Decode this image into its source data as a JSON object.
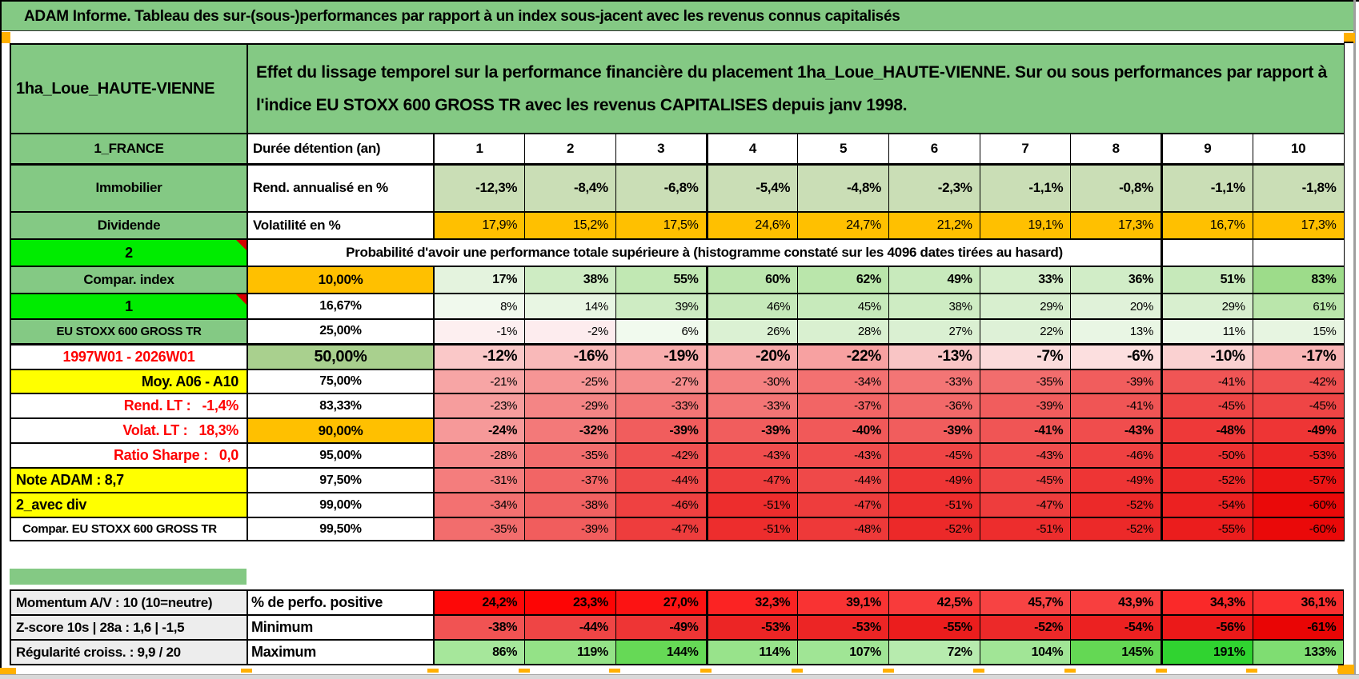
{
  "title_bar": {
    "text": "ADAM Informe. Tableau des sur-(sous-)performances par rapport à un index sous-jacent avec les revenus connus capitalisés"
  },
  "header": {
    "portfolio": "1ha_Loue_HAUTE-VIENNE",
    "description": "Effet du lissage temporel sur la performance financière du placement 1ha_Loue_HAUTE-VIENNE. Sur ou sous performances par rapport à l'indice EU STOXX 600 GROSS TR avec les revenus CAPITALISES depuis janv 1998."
  },
  "columns": [
    "1",
    "2",
    "3",
    "4",
    "5",
    "6",
    "7",
    "8",
    "9",
    "10"
  ],
  "prob_banner": "Probabilité d'avoir une performance totale supérieure à (histogramme constaté sur les 4096 dates tirées au hasard)",
  "colors": {
    "section_green": "#84c984",
    "bright_green": "#00ec00",
    "orange": "#ffc000",
    "yellow": "#ffff00",
    "red_text": "#fe0000",
    "mid_green_50": "#a9d08e",
    "rend_row_green": "#cadeb6",
    "label_gray": "#ededed",
    "marker_orange": "#ffb000"
  },
  "main_rows": [
    {
      "kind": "cols",
      "label": "1_FRANCE",
      "label_style": "green",
      "header": "Durée détention (an)",
      "header_style": "left-bold",
      "thick_bottom": true
    },
    {
      "kind": "data",
      "label": "Immobilier",
      "label_style": "green",
      "header": "Rend. annualisé en %",
      "header_style": "left-bold",
      "value_style": "bold-17",
      "cell_bg": "#cadeb6",
      "values": [
        "-12,3%",
        "-8,4%",
        "-6,8%",
        "-5,4%",
        "-4,8%",
        "-2,3%",
        "-1,1%",
        "-0,8%",
        "-1,1%",
        "-1,8%"
      ]
    },
    {
      "kind": "data",
      "label": "Dividende",
      "label_style": "green",
      "header": "Volatilité en %",
      "header_style": "left-bold",
      "value_style": "norm-16",
      "cell_bg": "#ffc000",
      "values": [
        "17,9%",
        "15,2%",
        "17,5%",
        "24,6%",
        "24,7%",
        "21,2%",
        "19,1%",
        "17,3%",
        "16,7%",
        "17,3%"
      ]
    },
    {
      "kind": "banner",
      "label": "2",
      "label_style": "bright",
      "marker": true
    },
    {
      "kind": "data",
      "label": "Compar. index",
      "label_style": "green",
      "header": "10,00%",
      "header_style": "orange",
      "value_style": "bold-16",
      "values": [
        "17%",
        "38%",
        "55%",
        "60%",
        "62%",
        "49%",
        "33%",
        "36%",
        "51%",
        "83%"
      ],
      "cell_bgs": [
        "#e4f3de",
        "#ceecc3",
        "#c1e8b3",
        "#bce6ae",
        "#bae6ab",
        "#c8eabc",
        "#d4eeca",
        "#d1edc7",
        "#c6e9ba",
        "#9ddc8a"
      ]
    },
    {
      "kind": "data",
      "label": "1",
      "label_style": "bright",
      "marker": true,
      "header": "16,67%",
      "header_style": "center",
      "value_style": "norm-15",
      "values": [
        "8%",
        "14%",
        "39%",
        "46%",
        "45%",
        "38%",
        "29%",
        "20%",
        "29%",
        "61%"
      ],
      "cell_bgs": [
        "#f0f9ed",
        "#e8f6e3",
        "#ceecc3",
        "#c6e9ba",
        "#c7eabb",
        "#ceecc3",
        "#d8efcf",
        "#e0f2d9",
        "#d8efcf",
        "#bae6ab"
      ]
    },
    {
      "kind": "data",
      "label": "EU STOXX 600 GROSS TR",
      "label_style": "green-sm",
      "header": "25,00%",
      "header_style": "center",
      "value_style": "norm-15",
      "thick_bottom": true,
      "values": [
        "-1%",
        "-2%",
        "6%",
        "26%",
        "28%",
        "27%",
        "22%",
        "13%",
        "11%",
        "15%"
      ],
      "cell_bgs": [
        "#fdeff0",
        "#fdecee",
        "#f1faee",
        "#dbf1d3",
        "#d9f0d0",
        "#daf0d2",
        "#def1d7",
        "#e9f6e4",
        "#ebf7e7",
        "#e7f5e1"
      ]
    },
    {
      "kind": "data",
      "label": "1997W01 - 2026W01",
      "label_style": "red-center",
      "header": "50,00%",
      "header_style": "green-big",
      "value_style": "bold-19",
      "values": [
        "-12%",
        "-16%",
        "-19%",
        "-20%",
        "-22%",
        "-13%",
        "-7%",
        "-6%",
        "-10%",
        "-17%"
      ],
      "cell_bgs": [
        "#fac8c8",
        "#f9b9b9",
        "#f8adad",
        "#f7a9a9",
        "#f7a1a1",
        "#f9c5c5",
        "#fbdbdb",
        "#fcdfdf",
        "#fad1d1",
        "#f8b5b5"
      ]
    },
    {
      "kind": "data",
      "label": "Moy. A06 - A10",
      "label_style": "yellow-right",
      "header": "75,00%",
      "header_style": "center",
      "value_style": "norm-15",
      "values": [
        "-21%",
        "-25%",
        "-27%",
        "-30%",
        "-34%",
        "-33%",
        "-35%",
        "-39%",
        "-41%",
        "-42%"
      ],
      "cell_bgs": [
        "#f7a5a5",
        "#f69595",
        "#f58d8d",
        "#f48181",
        "#f37171",
        "#f37575",
        "#f26d6d",
        "#f15d5d",
        "#f05555",
        "#f05151"
      ]
    },
    {
      "kind": "data",
      "label": "Rend. LT :   -1,4%",
      "label_style": "red-right",
      "header": "83,33%",
      "header_style": "center",
      "value_style": "norm-15",
      "values": [
        "-23%",
        "-29%",
        "-33%",
        "-33%",
        "-37%",
        "-36%",
        "-39%",
        "-41%",
        "-45%",
        "-45%"
      ],
      "cell_bgs": [
        "#f69d9d",
        "#f48585",
        "#f37575",
        "#f37575",
        "#f26565",
        "#f26969",
        "#f15d5d",
        "#f05555",
        "#ef4545",
        "#ef4545"
      ]
    },
    {
      "kind": "data",
      "label": "Volat. LT :   18,3%",
      "label_style": "red-right",
      "header": "90,00%",
      "header_style": "orange",
      "value_style": "bold-16",
      "values": [
        "-24%",
        "-32%",
        "-39%",
        "-39%",
        "-40%",
        "-39%",
        "-41%",
        "-43%",
        "-48%",
        "-49%"
      ],
      "cell_bgs": [
        "#f69999",
        "#f37979",
        "#f15d5d",
        "#f15d5d",
        "#f15959",
        "#f15d5d",
        "#f05555",
        "#f04d4d",
        "#ee3939",
        "#ee3535"
      ]
    },
    {
      "kind": "data",
      "label": "Ratio Sharpe :   0,0",
      "label_style": "red-right",
      "header": "95,00%",
      "header_style": "center",
      "value_style": "norm-15",
      "values": [
        "-28%",
        "-35%",
        "-42%",
        "-43%",
        "-43%",
        "-45%",
        "-43%",
        "-46%",
        "-50%",
        "-53%"
      ],
      "cell_bgs": [
        "#f58989",
        "#f26d6d",
        "#f05151",
        "#f04d4d",
        "#f04d4d",
        "#ef4545",
        "#f04d4d",
        "#ef4141",
        "#ed3131",
        "#ec2525"
      ]
    },
    {
      "kind": "data",
      "label": "Note ADAM : 8,7",
      "label_style": "yellow-left",
      "header": "97,50%",
      "header_style": "center",
      "value_style": "norm-15",
      "values": [
        "-31%",
        "-37%",
        "-44%",
        "-47%",
        "-44%",
        "-49%",
        "-45%",
        "-49%",
        "-52%",
        "-57%"
      ],
      "cell_bgs": [
        "#f47d7d",
        "#f26565",
        "#ef4949",
        "#ee3d3d",
        "#ef4949",
        "#ee3535",
        "#ef4545",
        "#ee3535",
        "#ec2929",
        "#eb1515"
      ]
    },
    {
      "kind": "data",
      "label": "2_avec div",
      "label_style": "yellow-left",
      "header": "99,00%",
      "header_style": "center",
      "value_style": "norm-15",
      "values": [
        "-34%",
        "-38%",
        "-46%",
        "-51%",
        "-47%",
        "-51%",
        "-47%",
        "-52%",
        "-54%",
        "-60%"
      ],
      "cell_bgs": [
        "#f37171",
        "#f16161",
        "#ef4141",
        "#ed2d2d",
        "#ee3d3d",
        "#ed2d2d",
        "#ee3d3d",
        "#ec2929",
        "#ec2121",
        "#ea0909"
      ]
    },
    {
      "kind": "data",
      "label": "Compar. EU STOXX 600 GROSS TR",
      "label_style": "white-left",
      "header": "99,50%",
      "header_style": "center",
      "value_style": "norm-15",
      "values": [
        "-35%",
        "-39%",
        "-47%",
        "-51%",
        "-48%",
        "-52%",
        "-51%",
        "-52%",
        "-55%",
        "-60%"
      ],
      "cell_bgs": [
        "#f26d6d",
        "#f15d5d",
        "#ee3d3d",
        "#ed2d2d",
        "#ee3939",
        "#ec2929",
        "#ed2d2d",
        "#ec2929",
        "#eb1d1d",
        "#ea0909"
      ]
    }
  ],
  "bottom_rows": [
    {
      "label": "Momentum A/V : 10 (10=neutre)",
      "header": "% de perfo. positive",
      "value_style": "bold-16",
      "values": [
        "24,2%",
        "23,3%",
        "27,0%",
        "32,3%",
        "39,1%",
        "42,5%",
        "45,7%",
        "43,9%",
        "34,3%",
        "36,1%"
      ],
      "cell_bgs": [
        "#fd0808",
        "#fd0505",
        "#fc1313",
        "#fb2323",
        "#f93333",
        "#f83b3b",
        "#f74343",
        "#f83f3f",
        "#fa2929",
        "#fa2f2f"
      ]
    },
    {
      "label": "Z-score 10s | 28a : 1,6 | -1,5",
      "header": "Minimum",
      "value_style": "bold-16",
      "values": [
        "-38%",
        "-44%",
        "-49%",
        "-53%",
        "-53%",
        "-55%",
        "-52%",
        "-54%",
        "-56%",
        "-61%"
      ],
      "cell_bgs": [
        "#f15353",
        "#ef4545",
        "#ee3535",
        "#ec2525",
        "#ec2525",
        "#eb1d1d",
        "#ec2929",
        "#ec2121",
        "#eb1919",
        "#e90505"
      ]
    },
    {
      "label": "Régularité croiss. : 9,9 / 20",
      "header": "Maximum",
      "value_style": "bold-16",
      "values": [
        "86%",
        "119%",
        "144%",
        "114%",
        "107%",
        "72%",
        "104%",
        "145%",
        "191%",
        "133%"
      ],
      "cell_bgs": [
        "#a6e79b",
        "#94e287",
        "#66d956",
        "#98e38b",
        "#a0e595",
        "#b7ebae",
        "#a1e596",
        "#64d854",
        "#30d330",
        "#7fdd72"
      ]
    }
  ]
}
